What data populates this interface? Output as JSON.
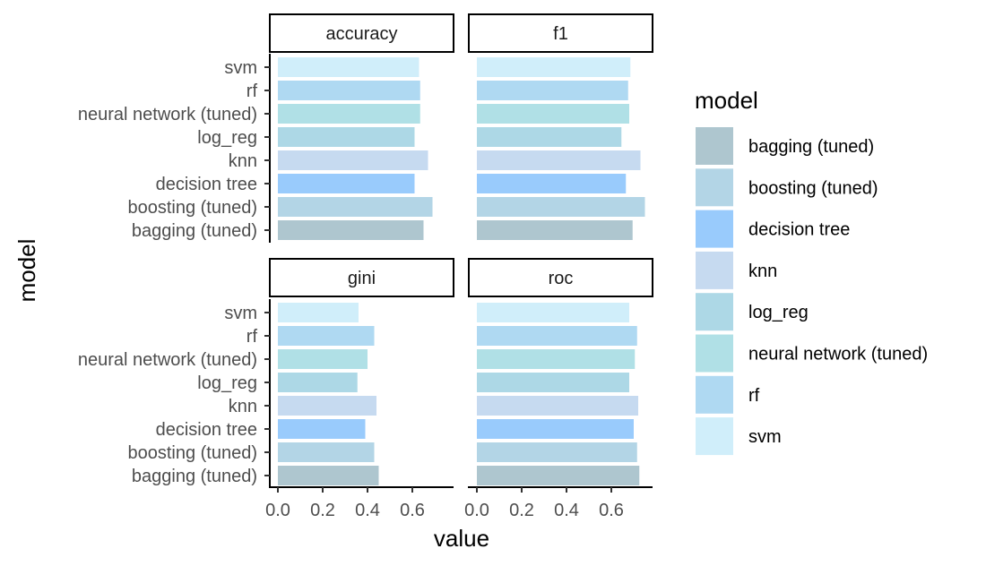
{
  "chart_data": {
    "type": "bar",
    "orientation": "horizontal",
    "xlabel": "value",
    "ylabel": "model",
    "xlim": [
      0,
      0.75
    ],
    "x_ticks": [
      "0.0",
      "0.2",
      "0.4",
      "0.6"
    ],
    "x_tick_values": [
      0,
      0.2,
      0.4,
      0.6
    ],
    "categories": [
      "svm",
      "rf",
      "neural network (tuned)",
      "log_reg",
      "knn",
      "decision tree",
      "boosting (tuned)",
      "bagging (tuned)"
    ],
    "legend": {
      "title": "model",
      "position": "right",
      "entries": [
        "bagging (tuned)",
        "boosting (tuned)",
        "decision tree",
        "knn",
        "log_reg",
        "neural network (tuned)",
        "rf",
        "svm"
      ]
    },
    "colors": {
      "bagging (tuned)": "#AEC6CF",
      "boosting (tuned)": "#B3D5E6",
      "decision tree": "#99CBFC",
      "knn": "#C6DAF0",
      "log_reg": "#ADD8E6",
      "neural network (tuned)": "#B0E0E6",
      "rf": "#AFD9F2",
      "svm": "#D0EEFA"
    },
    "panels": [
      {
        "facet": "accuracy",
        "values": {
          "svm": 0.63,
          "rf": 0.635,
          "neural network (tuned)": 0.635,
          "log_reg": 0.61,
          "knn": 0.67,
          "decision tree": 0.61,
          "boosting (tuned)": 0.69,
          "bagging (tuned)": 0.65
        }
      },
      {
        "facet": "f1",
        "values": {
          "svm": 0.685,
          "rf": 0.675,
          "neural network (tuned)": 0.68,
          "log_reg": 0.645,
          "knn": 0.73,
          "decision tree": 0.665,
          "boosting (tuned)": 0.75,
          "bagging (tuned)": 0.695
        }
      },
      {
        "facet": "gini",
        "values": {
          "svm": 0.36,
          "rf": 0.43,
          "neural network (tuned)": 0.4,
          "log_reg": 0.355,
          "knn": 0.44,
          "decision tree": 0.39,
          "boosting (tuned)": 0.43,
          "bagging (tuned)": 0.45
        }
      },
      {
        "facet": "roc",
        "values": {
          "svm": 0.68,
          "rf": 0.715,
          "neural network (tuned)": 0.705,
          "log_reg": 0.68,
          "knn": 0.72,
          "decision tree": 0.7,
          "boosting (tuned)": 0.715,
          "bagging (tuned)": 0.725
        }
      }
    ],
    "grid": false
  }
}
